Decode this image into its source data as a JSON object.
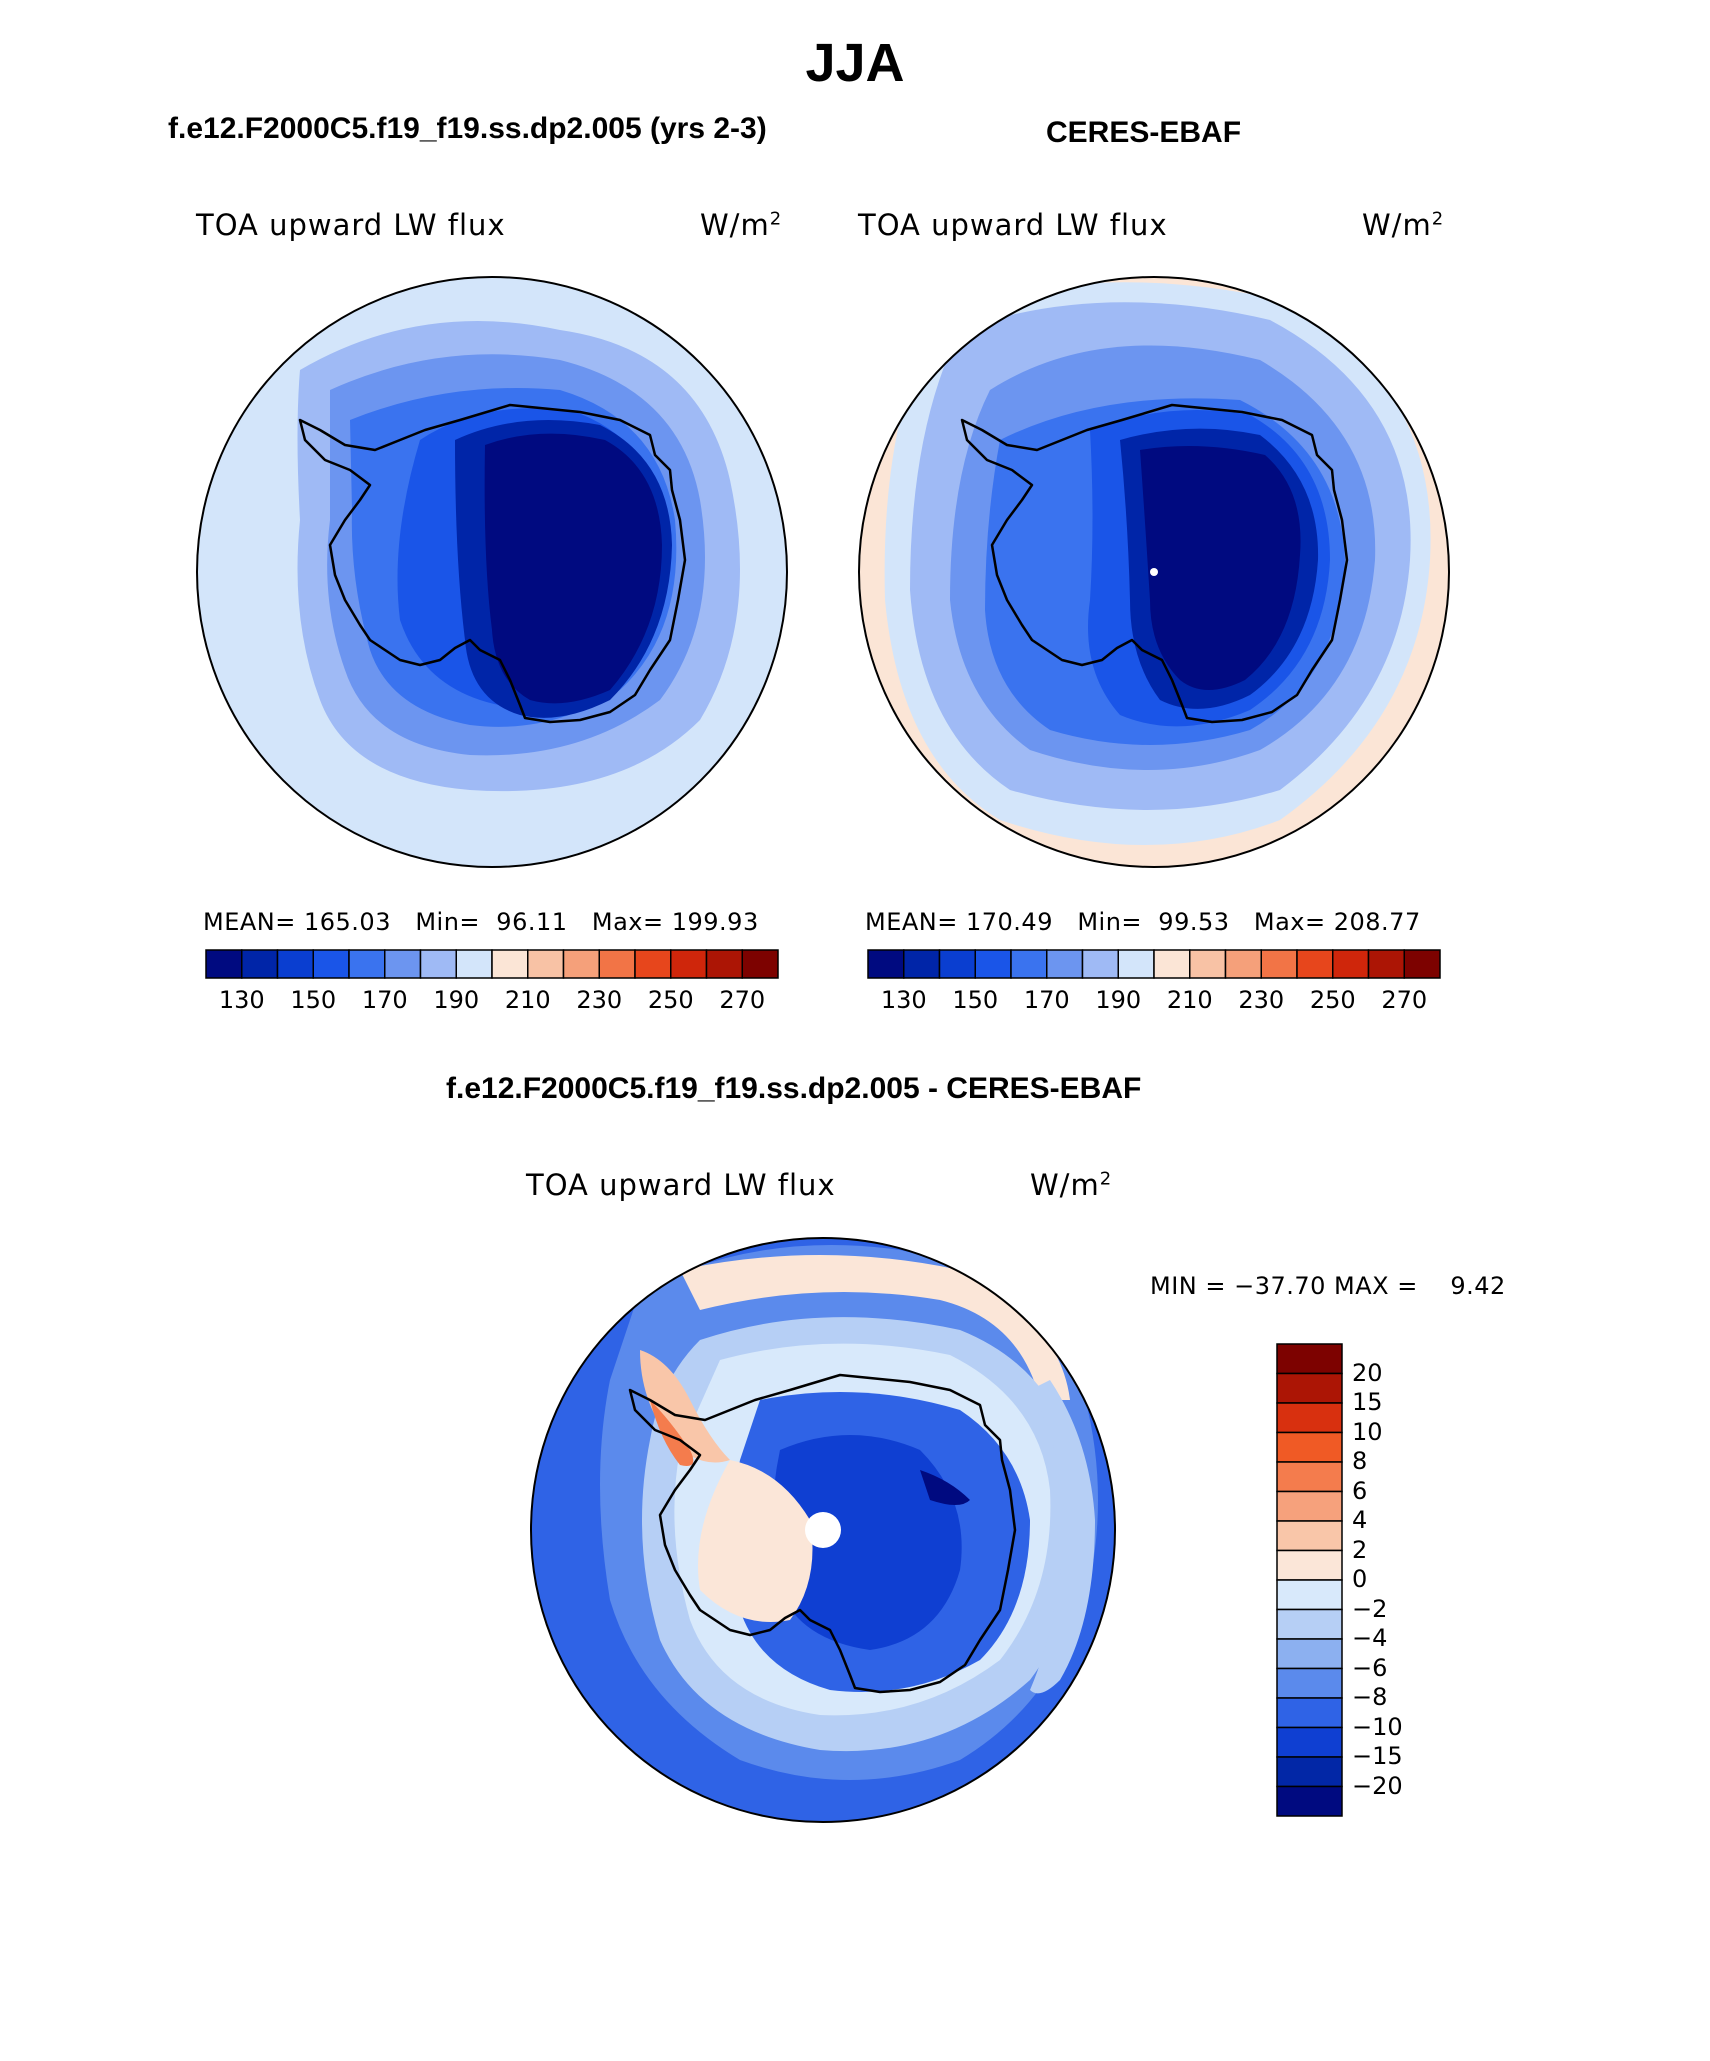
{
  "title": "JJA",
  "panels": [
    {
      "heading": "f.e12.F2000C5.f19_f19.ss.dp2.005 (yrs 2-3)",
      "variable": "TOA upward LW flux",
      "units_base": "W/m",
      "units_exp": "2",
      "stats": "MEAN= 165.03   Min=  96.11   Max= 199.93"
    },
    {
      "heading": "CERES-EBAF",
      "variable": "TOA upward LW flux",
      "units_base": "W/m",
      "units_exp": "2",
      "stats": "MEAN= 170.49   Min=  99.53   Max= 208.77"
    }
  ],
  "colorbar": {
    "colors": [
      "#000a80",
      "#0025a8",
      "#0a3ed0",
      "#1a55e8",
      "#3a73ef",
      "#6c95f0",
      "#9fbaf5",
      "#d3e5fa",
      "#fbe5d6",
      "#f8c2a5",
      "#f5a07a",
      "#f27446",
      "#e7461c",
      "#cf260b",
      "#ac1505",
      "#7d0200"
    ],
    "ticks": [
      "130",
      "150",
      "170",
      "190",
      "210",
      "230",
      "250",
      "270"
    ]
  },
  "difference": {
    "heading": "f.e12.F2000C5.f19_f19.ss.dp2.005 - CERES-EBAF",
    "variable": "TOA upward LW flux",
    "units_base": "W/m",
    "units_exp": "2",
    "minmax": "MIN = −37.70 MAX =    9.42",
    "colors": [
      "#7d0200",
      "#ac1505",
      "#d8300f",
      "#f05a25",
      "#f47c4d",
      "#f6a17c",
      "#f9c6a9",
      "#fbe6d8",
      "#d8e9fb",
      "#b6cff5",
      "#8cb0f0",
      "#5b8aec",
      "#2f63e6",
      "#0f3fd2",
      "#0227a6",
      "#000a80"
    ],
    "ticks": [
      "20",
      "15",
      "10",
      "8",
      "6",
      "4",
      "2",
      "0",
      "−2",
      "−4",
      "−6",
      "−8",
      "−10",
      "−15",
      "−20"
    ]
  }
}
